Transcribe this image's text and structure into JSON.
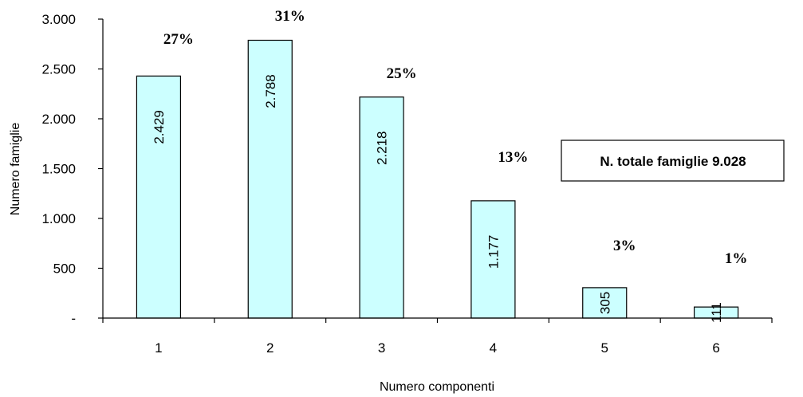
{
  "chart_data": {
    "type": "bar",
    "categories": [
      "1",
      "2",
      "3",
      "4",
      "5",
      "6"
    ],
    "values": [
      2429,
      2788,
      2218,
      1177,
      305,
      111
    ],
    "value_labels": [
      "2.429",
      "2.788",
      "2.218",
      "1.177",
      "305",
      "111"
    ],
    "percent_labels": [
      "27%",
      "31%",
      "25%",
      "13%",
      "3%",
      "1%"
    ],
    "xlabel": "Numero componenti",
    "ylabel": "Numero famiglie",
    "ylim": [
      0,
      3000
    ],
    "yticks": [
      0,
      500,
      1000,
      1500,
      2000,
      2500,
      3000
    ],
    "ytick_labels": [
      "-",
      "500",
      "1.000",
      "1.500",
      "2.000",
      "2.500",
      "3.000"
    ],
    "annotation": "N. totale famiglie 9.028",
    "grid": false,
    "legend": "none",
    "colors": {
      "bar_fill": "#ccffff",
      "bar_stroke": "#000000",
      "axis": "#000000"
    }
  }
}
